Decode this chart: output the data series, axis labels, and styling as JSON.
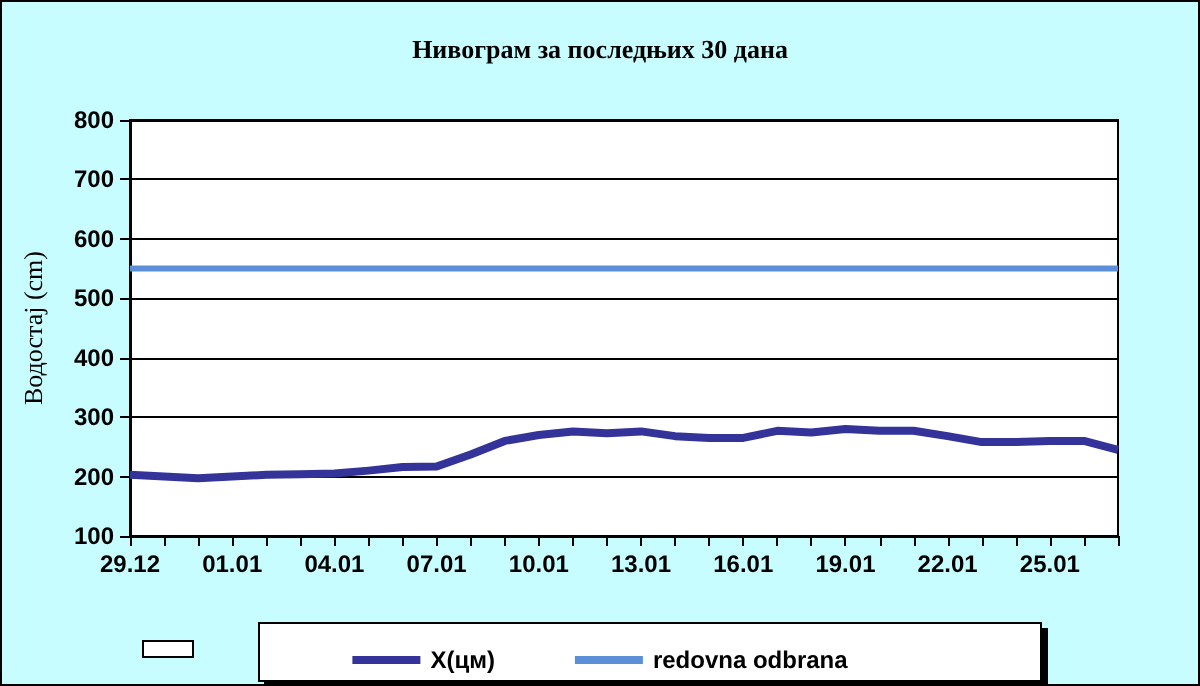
{
  "chart_data": {
    "type": "line",
    "title": "Нивограм за последњих 30 дана",
    "ylabel": "Водостај (cm)",
    "categories": [
      "29.12",
      null,
      null,
      "01.01",
      null,
      null,
      "04.01",
      null,
      null,
      "07.01",
      null,
      null,
      "10.01",
      null,
      null,
      "13.01",
      null,
      null,
      "16.01",
      null,
      null,
      "19.01",
      null,
      null,
      "22.01",
      null,
      null,
      "25.01",
      null,
      null
    ],
    "series": [
      {
        "name": "X(цм)",
        "color": "#333399",
        "values": [
          203,
          200,
          197,
          200,
          203,
          204,
          205,
          210,
          216,
          217,
          237,
          260,
          270,
          276,
          273,
          276,
          268,
          265,
          265,
          277,
          274,
          280,
          277,
          277,
          268,
          258,
          258,
          260,
          260,
          245
        ]
      },
      {
        "name": "redovna odbrana",
        "color": "#5b8fd8",
        "values": [
          550,
          550,
          550,
          550,
          550,
          550,
          550,
          550,
          550,
          550,
          550,
          550,
          550,
          550,
          550,
          550,
          550,
          550,
          550,
          550,
          550,
          550,
          550,
          550,
          550,
          550,
          550,
          550,
          550,
          550
        ]
      }
    ],
    "ylim": [
      100,
      800
    ],
    "yticks": [
      100,
      200,
      300,
      400,
      500,
      600,
      700,
      800
    ],
    "grid": "y",
    "legend": "bottom",
    "marker": "none",
    "line_style": "solid"
  }
}
